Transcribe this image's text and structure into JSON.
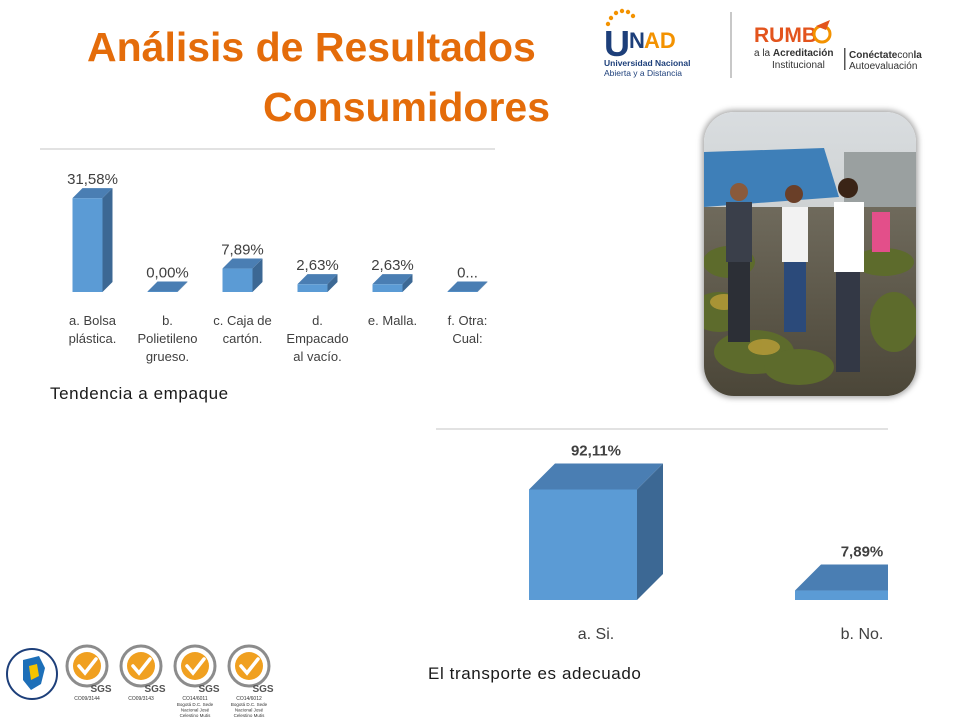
{
  "slide": {
    "title_line1": "Análisis de Resultados",
    "title_line2": "Consumidores",
    "caption_chart1": "Tendencia a empaque",
    "caption_chart2": "El transporte es adecuado"
  },
  "logos": {
    "unad_letters": "UNAD",
    "unad_line1": "Universidad Nacional",
    "unad_line2": "Abierta y a Distancia",
    "rumbo_word": "RUMB",
    "rumbo_line1_prefix": "a la ",
    "rumbo_line1_strong": "Acreditación",
    "rumbo_line2": "Institucional",
    "conectate_strong": "Conéctate",
    "conectate_con": "con",
    "conectate_la": "la",
    "autoevaluacion": "Autoevaluación"
  },
  "seals": {
    "brand": "SGS",
    "codes": [
      "CO09/3144",
      "CO09/3143",
      "CO14/6011",
      "CO14/6012"
    ],
    "location": [
      "Bogotá D.C. Sede",
      "Nacional José",
      "Celestino Mutis"
    ]
  },
  "colors": {
    "title": "#e46c0a",
    "bar_front": "#5b9bd5",
    "bar_top": "#4a7eb3",
    "bar_side": "#3c6894",
    "label_text": "#404040"
  },
  "photo": {
    "icon": "market-photo-icon"
  },
  "chart_data": [
    {
      "type": "bar",
      "categories": [
        [
          "a. Bolsa",
          "plástica."
        ],
        [
          "b.",
          "Polietileno",
          "grueso."
        ],
        [
          "c. Caja de",
          "cartón."
        ],
        [
          "d.",
          "Empacado",
          "al vacío."
        ],
        [
          "e. Malla."
        ],
        [
          "f. Otra:",
          "Cual:"
        ]
      ],
      "values": [
        31.58,
        0.0,
        7.89,
        2.63,
        2.63,
        0.0
      ],
      "data_labels": [
        "31,58%",
        "0,00%",
        "7,89%",
        "2,63%",
        "2,63%",
        "0..."
      ],
      "ylim": [
        0,
        35
      ],
      "grid": false,
      "title": "",
      "xlabel": "",
      "ylabel": ""
    },
    {
      "type": "bar",
      "categories": [
        [
          "a. Si."
        ],
        [
          "b. No."
        ]
      ],
      "values": [
        92.11,
        7.89
      ],
      "data_labels": [
        "92,11%",
        "7,89%"
      ],
      "ylim": [
        0,
        100
      ],
      "grid": false,
      "title": "",
      "xlabel": "",
      "ylabel": ""
    }
  ]
}
